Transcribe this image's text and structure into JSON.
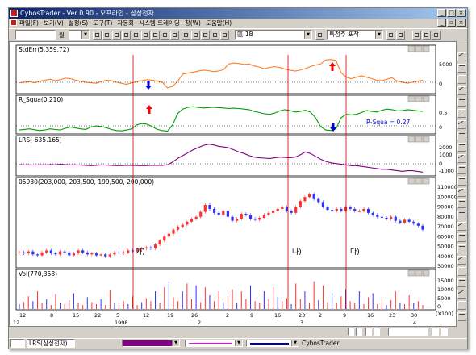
{
  "window": {
    "title": "CybosTrader - Ver 0.90 - 오프라인 - 삼성전자",
    "min_btn": "_",
    "max_btn": "□",
    "close_btn": "×"
  },
  "menu": {
    "items": [
      "파일(F)",
      "보기(V)",
      "설정(S)",
      "도구(T)",
      "자동화",
      "시스템 트레이딩",
      "창(W)",
      "도움말(H)"
    ],
    "mdi_min": "_",
    "mdi_max": "▫",
    "mdi_close": "×"
  },
  "toolbar": {
    "code_value": "",
    "period_label": "월",
    "item_value": "",
    "scheme_value": "區 1B",
    "condition_value": "특정주 포착"
  },
  "panels": {
    "stderr_title": "StdErr(5,359.72)",
    "rsqua_title": "R_Squa(0.210)",
    "lrs_title": "LRS(-635.165)",
    "price_title": "05930(203,000, 203,500, 199,500, 200,000)",
    "vol_title": "Vol(770,358)",
    "rsqua_label": "R-Squa = 0.27"
  },
  "annotations": {
    "ga": "가)",
    "na": "나)",
    "da": "다)"
  },
  "axes": {
    "stderr_ticks": [
      "5000",
      "0"
    ],
    "rsqua_ticks": [
      "0.5",
      "0"
    ],
    "lrs_ticks": [
      "2000",
      "1000",
      "0",
      "-1000"
    ],
    "price_ticks": [
      "110000",
      "100000",
      "90000",
      "80000",
      "70000",
      "60000",
      "50000",
      "40000",
      "30000"
    ],
    "vol_ticks": [
      "15000",
      "10000",
      "5000",
      "0"
    ],
    "vol_unit": "[X100]",
    "date_row1": [
      "12",
      "8",
      "15",
      "22",
      "5",
      "12",
      "19",
      "26",
      "2",
      "9",
      "16",
      "23",
      "2",
      "9",
      "16",
      "23",
      "30"
    ],
    "date_row1b": [
      "3"
    ],
    "date_row2": [
      "12",
      "1998",
      "2",
      "3",
      "4"
    ]
  },
  "bottom": {
    "tab_label": "LRS(삼성전자)",
    "app_label": "CybosTrader"
  },
  "colors": {
    "stderr_line": "#ff7f27",
    "rsqua_line": "#009f00",
    "lrs_line": "#800080",
    "marker_red": "#ff0000",
    "marker_blue": "#0000cc",
    "up_candle": "#ff3030",
    "down_candle": "#3030ff",
    "vertical_guides": "#cc0000"
  },
  "chart_data": {
    "type": "line",
    "note": "",
    "series": [
      {
        "name": "StdErr",
        "values": [
          1500,
          1600,
          1700,
          1500,
          1800,
          2000,
          2200,
          1900,
          2100,
          2400,
          2300,
          2000,
          1800,
          1600,
          1500,
          1400,
          1700,
          2000,
          1900,
          1600,
          1400,
          1200,
          1500,
          1700,
          1900,
          2100,
          2000,
          1800,
          1600,
          500,
          800,
          1800,
          3200,
          3400,
          3600,
          3800,
          4000,
          3900,
          3700,
          3800,
          4100,
          5200,
          5400,
          5300,
          5100,
          5200,
          4800,
          4600,
          4300,
          4500,
          4700,
          4500,
          4200,
          4000,
          3800,
          4000,
          4300,
          4700,
          5000,
          5200,
          6000,
          6100,
          5900,
          3500,
          2600,
          2300,
          2600,
          2900,
          2600,
          2300,
          2000,
          1900,
          2200,
          2500,
          1800,
          1600,
          1400,
          1600,
          1800,
          2000
        ]
      },
      {
        "name": "R_Squa",
        "values": [
          0.08,
          0.1,
          0.12,
          0.09,
          0.06,
          0.08,
          0.12,
          0.1,
          0.08,
          0.14,
          0.18,
          0.15,
          0.12,
          0.1,
          0.18,
          0.22,
          0.2,
          0.16,
          0.1,
          0.06,
          0.05,
          0.08,
          0.12,
          0.26,
          0.3,
          0.28,
          0.2,
          0.1,
          0.06,
          0.04,
          0.25,
          0.65,
          0.8,
          0.86,
          0.88,
          0.86,
          0.84,
          0.85,
          0.86,
          0.85,
          0.84,
          0.82,
          0.83,
          0.82,
          0.8,
          0.78,
          0.72,
          0.68,
          0.64,
          0.62,
          0.66,
          0.74,
          0.78,
          0.75,
          0.7,
          0.72,
          0.76,
          0.7,
          0.5,
          0.2,
          0.08,
          0.06,
          0.12,
          0.5,
          0.62,
          0.6,
          0.62,
          0.68,
          0.75,
          0.72,
          0.7,
          0.76,
          0.8,
          0.78,
          0.74,
          0.75,
          0.78,
          0.76,
          0.74,
          0.72
        ]
      },
      {
        "name": "LRS",
        "values": [
          -150,
          -200,
          -180,
          -220,
          -180,
          -200,
          -150,
          -180,
          -100,
          -150,
          -200,
          -180,
          -220,
          -250,
          -300,
          -250,
          -200,
          -220,
          -250,
          -300,
          -280,
          -260,
          -250,
          -280,
          -300,
          -280,
          -260,
          -250,
          -250,
          -180,
          200,
          700,
          1100,
          1500,
          1900,
          2200,
          2500,
          2700,
          2600,
          2400,
          2300,
          2200,
          1900,
          1600,
          1400,
          1100,
          900,
          800,
          750,
          700,
          800,
          900,
          850,
          800,
          900,
          1200,
          1600,
          1400,
          1000,
          600,
          300,
          100,
          0,
          -100,
          -200,
          -300,
          -300,
          -400,
          -500,
          -600,
          -700,
          -800,
          -800,
          -900,
          -1000,
          -1100,
          -1000,
          -1000,
          -1100,
          -1200
        ]
      },
      {
        "name": "05930",
        "values": [
          44000,
          43000,
          45000,
          42000,
          41000,
          44000,
          46000,
          43000,
          42000,
          45000,
          44000,
          41000,
          43000,
          46000,
          44000,
          42000,
          43000,
          41000,
          42000,
          40000,
          42000,
          44000,
          43000,
          44000,
          46000,
          45000,
          47000,
          48000,
          49000,
          48000,
          52000,
          56000,
          60000,
          63000,
          67000,
          70000,
          72000,
          75000,
          78000,
          80000,
          85000,
          92000,
          88000,
          84000,
          82000,
          86000,
          80000,
          76000,
          78000,
          83000,
          82000,
          78000,
          77000,
          79000,
          82000,
          84000,
          86000,
          88000,
          90000,
          86000,
          84000,
          90000,
          96000,
          100000,
          103000,
          98000,
          95000,
          90000,
          87000,
          86000,
          88000,
          86000,
          90000,
          88000,
          86000,
          86000,
          88000,
          84000,
          82000,
          80000,
          79000,
          78000,
          80000,
          76000,
          74000,
          77000,
          75000,
          73000,
          71000,
          67000
        ]
      },
      {
        "name": "Vol",
        "values": [
          2500,
          3500,
          6500,
          4000,
          9000,
          3000,
          5000,
          2000,
          7500,
          3000,
          2500,
          4500,
          8000,
          3000,
          2000,
          6000,
          3500,
          2500,
          5000,
          2000,
          9500,
          3000,
          2000,
          4000,
          2500,
          6500,
          2000,
          3500,
          5500,
          4000,
          9000,
          3000,
          11000,
          14000,
          6000,
          4000,
          9000,
          13000,
          5000,
          12000,
          3500,
          11000,
          7000,
          4000,
          9000,
          3500,
          6500,
          10000,
          3000,
          9000,
          5000,
          12000,
          4000,
          3000,
          9000,
          5000,
          11000,
          6000,
          4000,
          5500,
          2500,
          13000,
          5000,
          9000,
          3000,
          14000,
          4500,
          12000,
          3500,
          8000,
          3000,
          6500,
          10000,
          4000,
          3000,
          9000,
          2500,
          6000,
          8000,
          2500,
          5000,
          2000,
          4500,
          9000,
          3000,
          2500,
          7000,
          3000,
          4000,
          2000
        ]
      }
    ],
    "price_range": [
      30000,
      110000
    ]
  }
}
